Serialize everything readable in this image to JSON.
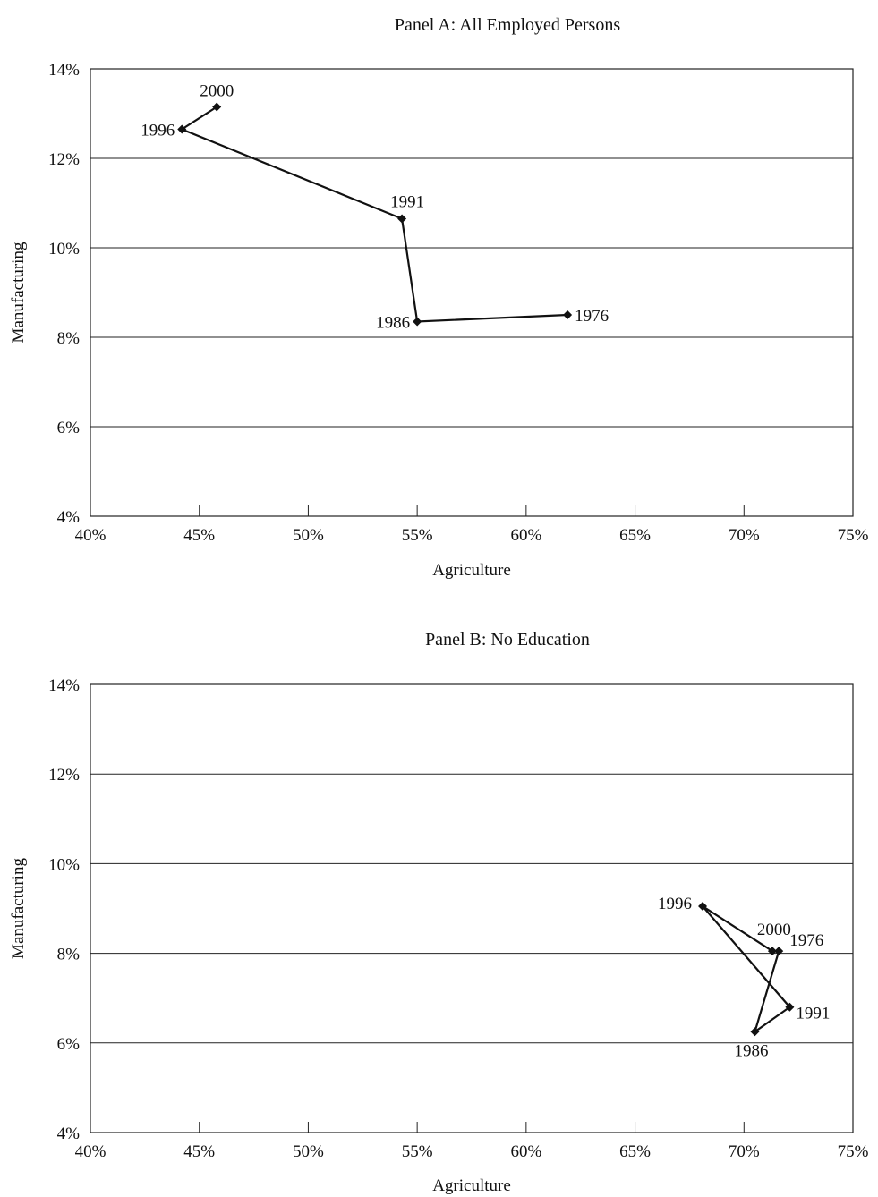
{
  "chart_data": [
    {
      "type": "line",
      "title": "Panel A:  All Employed Persons",
      "xlabel": "Agriculture",
      "ylabel": "Manufacturing",
      "xlim": [
        40,
        75
      ],
      "ylim": [
        4,
        14
      ],
      "x_ticks": [
        "40%",
        "45%",
        "50%",
        "55%",
        "60%",
        "65%",
        "70%",
        "75%"
      ],
      "y_ticks": [
        "4%",
        "6%",
        "8%",
        "10%",
        "12%",
        "14%"
      ],
      "grid": "horizontal",
      "series": [
        {
          "points": [
            {
              "label": "1976",
              "x": 61.9,
              "y": 8.5
            },
            {
              "label": "1986",
              "x": 55.0,
              "y": 8.35
            },
            {
              "label": "1991",
              "x": 54.3,
              "y": 10.65
            },
            {
              "label": "1996",
              "x": 44.2,
              "y": 12.65
            },
            {
              "label": "2000",
              "x": 45.8,
              "y": 13.15
            }
          ]
        }
      ]
    },
    {
      "type": "line",
      "title": "Panel B:  No Education",
      "xlabel": "Agriculture",
      "ylabel": "Manufacturing",
      "xlim": [
        40,
        75
      ],
      "ylim": [
        4,
        14
      ],
      "x_ticks": [
        "40%",
        "45%",
        "50%",
        "55%",
        "60%",
        "65%",
        "70%",
        "75%"
      ],
      "y_ticks": [
        "4%",
        "6%",
        "8%",
        "10%",
        "12%",
        "14%"
      ],
      "grid": "horizontal",
      "series": [
        {
          "points": [
            {
              "label": "1976",
              "x": 71.6,
              "y": 8.05
            },
            {
              "label": "1986",
              "x": 70.5,
              "y": 6.25
            },
            {
              "label": "1991",
              "x": 72.1,
              "y": 6.8
            },
            {
              "label": "1996",
              "x": 68.1,
              "y": 9.05
            },
            {
              "label": "2000",
              "x": 71.3,
              "y": 8.05
            }
          ]
        }
      ]
    }
  ]
}
